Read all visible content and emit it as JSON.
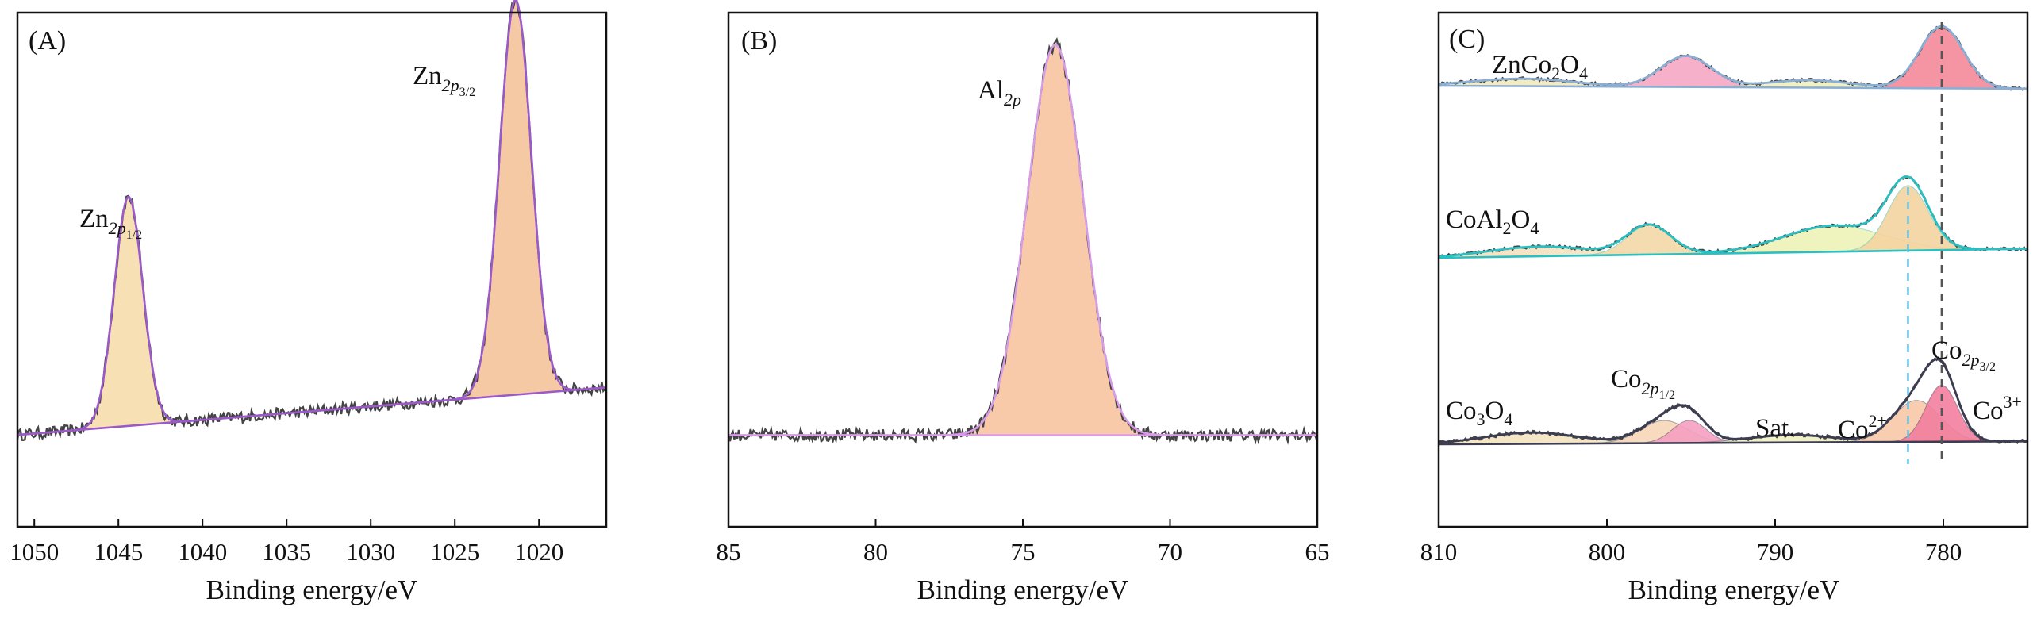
{
  "chart_data": [
    {
      "type": "line",
      "panel_label": "(A)",
      "xlabel": "Binding energy/eV",
      "ylabel": "",
      "xlim": [
        1051,
        1016
      ],
      "x_ticks": [
        1050,
        1045,
        1040,
        1035,
        1030,
        1025,
        1020
      ],
      "x_reversed": true,
      "baseline": [
        {
          "x": 1051,
          "y": 0.06
        },
        {
          "x": 1016,
          "y": 0.18
        }
      ],
      "peaks": [
        {
          "name": "Zn2p1/2",
          "center": 1044.4,
          "height": 0.58,
          "width": 0.85,
          "fill": "#f7deb0"
        },
        {
          "name": "Zn2p3/2",
          "center": 1021.4,
          "height": 1.0,
          "width": 0.95,
          "fill": "#f6c6a0"
        }
      ],
      "annotations": [
        {
          "text": "Zn",
          "sub": "2p",
          "subsub": "1/2",
          "x": 1044.4
        },
        {
          "text": "Zn",
          "sub": "2p",
          "subsub": "3/2",
          "x": 1021.4
        }
      ],
      "envelope_color": "#9b59c9",
      "raw_color": "#444444"
    },
    {
      "type": "line",
      "panel_label": "(B)",
      "xlabel": "Binding energy/eV",
      "ylabel": "",
      "xlim": [
        85,
        65
      ],
      "x_ticks": [
        85,
        80,
        75,
        70,
        65
      ],
      "x_reversed": true,
      "baseline": [
        {
          "x": 85,
          "y": 0.08
        },
        {
          "x": 65,
          "y": 0.08
        }
      ],
      "peaks": [
        {
          "name": "Al2p",
          "center": 73.9,
          "height": 0.95,
          "width": 0.95,
          "fill": "#f8c7a4"
        }
      ],
      "annotations": [
        {
          "text": "Al",
          "sub": "2p",
          "subsub": "",
          "x": 73.9
        }
      ],
      "envelope_color": "#d79be8",
      "raw_color": "#444444"
    },
    {
      "type": "line",
      "panel_label": "(C)",
      "xlabel": "Binding energy/eV",
      "ylabel": "",
      "xlim": [
        810,
        775
      ],
      "x_ticks": [
        810,
        800,
        790,
        780
      ],
      "x_reversed": true,
      "reference_lines": [
        {
          "x": 780.1,
          "color": "#555555"
        },
        {
          "x": 782.1,
          "color": "#5fc4e8"
        }
      ],
      "series": [
        {
          "name": "ZnCo2O4",
          "label_text": "ZnCo",
          "label_sub1": "2",
          "label_mid": "O",
          "label_sub2": "4",
          "offset": 0.0,
          "envelope_color": "#8aaed4",
          "baseline": [
            {
              "x": 810,
              "y": 0.0
            },
            {
              "x": 775,
              "y": -0.05
            }
          ],
          "components": [
            {
              "center": 805.0,
              "height": 0.12,
              "width": 3.0,
              "fill": "#f5e9b8"
            },
            {
              "center": 795.3,
              "height": 0.5,
              "width": 1.5,
              "fill": "#f7a8c4"
            },
            {
              "center": 788.0,
              "height": 0.12,
              "width": 2.5,
              "fill": "#f0f0c0"
            },
            {
              "center": 780.1,
              "height": 1.0,
              "width": 1.3,
              "fill": "#f58a9a"
            }
          ]
        },
        {
          "name": "CoAl2O4",
          "label_text": "CoAl",
          "label_sub1": "2",
          "label_mid": "O",
          "label_sub2": "4",
          "offset": 1.0,
          "envelope_color": "#2bbfc2",
          "baseline": [
            {
              "x": 810,
              "y": 0.0
            },
            {
              "x": 775,
              "y": 0.14
            }
          ],
          "components": [
            {
              "center": 804.0,
              "height": 0.15,
              "width": 3.0,
              "fill": "#f6e2c0"
            },
            {
              "center": 797.5,
              "height": 0.45,
              "width": 1.3,
              "fill": "#f5d9a8"
            },
            {
              "center": 786.5,
              "height": 0.4,
              "width": 3.0,
              "fill": "#eef2b8"
            },
            {
              "center": 782.1,
              "height": 1.0,
              "width": 1.2,
              "fill": "#f5d4a0"
            }
          ]
        },
        {
          "name": "Co3O4",
          "label_text": "Co",
          "label_sub1": "3",
          "label_mid": "O",
          "label_sub2": "4",
          "offset": 2.0,
          "envelope_color": "#3c3c52",
          "baseline": [
            {
              "x": 810,
              "y": 0.0
            },
            {
              "x": 775,
              "y": 0.04
            }
          ],
          "components": [
            {
              "center": 804.5,
              "height": 0.15,
              "width": 2.8,
              "fill": "#f5e5c0"
            },
            {
              "center": 796.6,
              "height": 0.3,
              "width": 1.4,
              "fill": "#f8d8b8"
            },
            {
              "center": 795.1,
              "height": 0.3,
              "width": 1.0,
              "fill": "#f5a0c0"
            },
            {
              "center": 789.0,
              "height": 0.1,
              "width": 2.5,
              "fill": "#f0f0c0"
            },
            {
              "center": 781.6,
              "height": 0.55,
              "width": 1.4,
              "fill": "#f8c8a8"
            },
            {
              "center": 780.1,
              "height": 0.75,
              "width": 0.95,
              "fill": "#f27fa0"
            }
          ]
        }
      ],
      "annotations": [
        {
          "text": "Co",
          "sub": "2p",
          "subsub": "1/2",
          "x": 796.5
        },
        {
          "text": "Sat.",
          "sub": "",
          "subsub": "",
          "x": 789.5
        },
        {
          "text": "Co",
          "sup": "2+",
          "x": 783.5
        },
        {
          "text": "Co",
          "sup": "3+",
          "x": 777.2
        },
        {
          "text": "Co",
          "sub": "2p",
          "subsub": "3/2",
          "x": 778.3
        }
      ]
    }
  ]
}
